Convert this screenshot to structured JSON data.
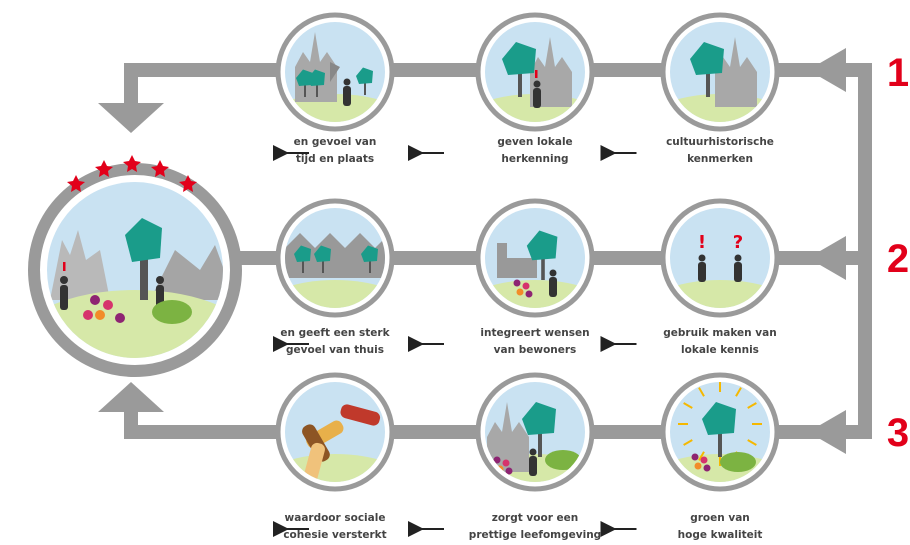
{
  "rows": [
    {
      "number": "1",
      "steps": [
        {
          "lines": [
            "cultuurhistorische",
            "kenmerken"
          ]
        },
        {
          "lines": [
            "geven lokale",
            "herkenning"
          ]
        },
        {
          "lines": [
            "en gevoel van",
            "tijd en plaats"
          ]
        }
      ]
    },
    {
      "number": "2",
      "steps": [
        {
          "lines": [
            "gebruik maken van",
            "lokale kennis"
          ]
        },
        {
          "lines": [
            "integreert wensen",
            "van bewoners"
          ]
        },
        {
          "lines": [
            "en geeft een sterk",
            "gevoel van thuis"
          ]
        }
      ]
    },
    {
      "number": "3",
      "steps": [
        {
          "lines": [
            "groen van",
            "hoge kwaliteit"
          ]
        },
        {
          "lines": [
            "zorgt voor een",
            "prettige leefomgeving"
          ]
        },
        {
          "lines": [
            "waardoor sociale",
            "cohesie versterkt"
          ]
        }
      ]
    }
  ]
}
